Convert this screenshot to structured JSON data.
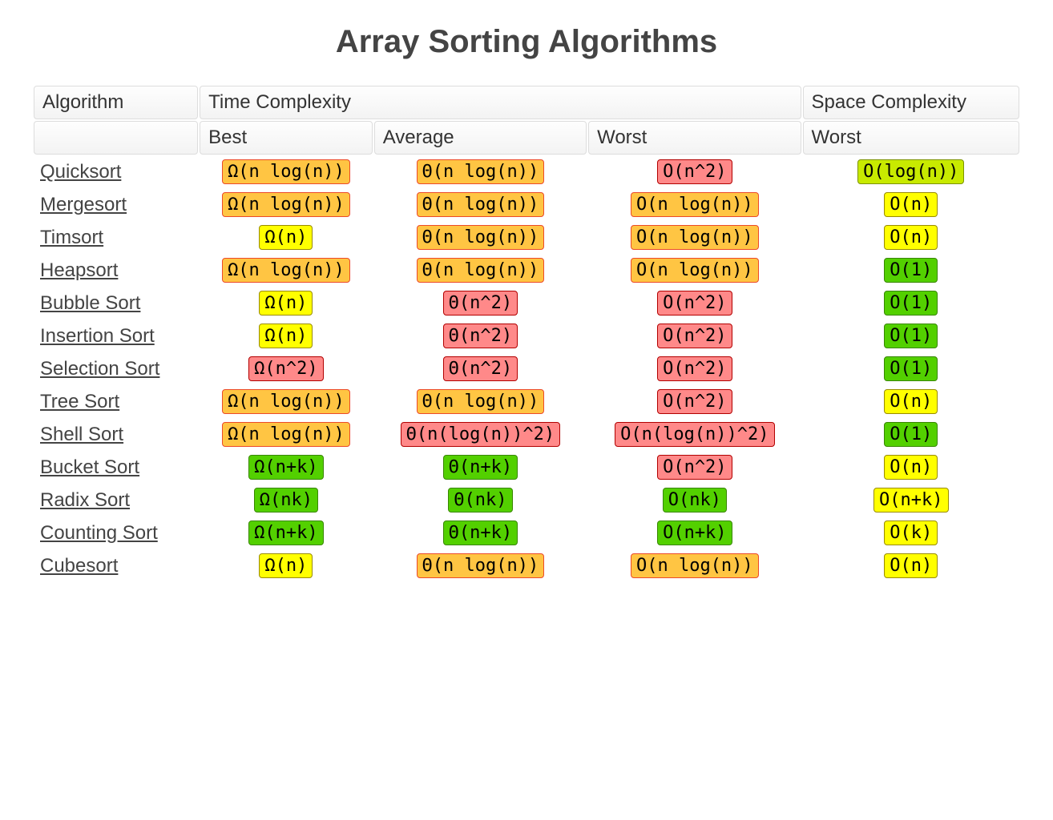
{
  "title": "Array Sorting Algorithms",
  "header": {
    "algorithm": "Algorithm",
    "time_group": "Time Complexity",
    "space_group": "Space Complexity",
    "best": "Best",
    "average": "Average",
    "worst": "Worst",
    "space_worst": "Worst"
  },
  "colors": {
    "green": {
      "bg": "#53d000",
      "border": "#388600"
    },
    "yellowgreen": {
      "bg": "#c8ea00",
      "border": "#7c9201"
    },
    "yellow": {
      "bg": "#ffff00",
      "border": "#998b00"
    },
    "orange": {
      "bg": "#ffc543",
      "border": "#ec4a29"
    },
    "red": {
      "bg": "#ff8989",
      "border": "#b20000"
    }
  },
  "rows": [
    {
      "name": "Quicksort",
      "best": {
        "text": "Ω(n log(n))",
        "color": "orange"
      },
      "avg": {
        "text": "Θ(n log(n))",
        "color": "orange"
      },
      "worst": {
        "text": "O(n^2)",
        "color": "red"
      },
      "space": {
        "text": "O(log(n))",
        "color": "yellowgreen"
      }
    },
    {
      "name": "Mergesort",
      "best": {
        "text": "Ω(n log(n))",
        "color": "orange"
      },
      "avg": {
        "text": "Θ(n log(n))",
        "color": "orange"
      },
      "worst": {
        "text": "O(n log(n))",
        "color": "orange"
      },
      "space": {
        "text": "O(n)",
        "color": "yellow"
      }
    },
    {
      "name": "Timsort",
      "best": {
        "text": "Ω(n)",
        "color": "yellow"
      },
      "avg": {
        "text": "Θ(n log(n))",
        "color": "orange"
      },
      "worst": {
        "text": "O(n log(n))",
        "color": "orange"
      },
      "space": {
        "text": "O(n)",
        "color": "yellow"
      }
    },
    {
      "name": "Heapsort",
      "best": {
        "text": "Ω(n log(n))",
        "color": "orange"
      },
      "avg": {
        "text": "Θ(n log(n))",
        "color": "orange"
      },
      "worst": {
        "text": "O(n log(n))",
        "color": "orange"
      },
      "space": {
        "text": "O(1)",
        "color": "green"
      }
    },
    {
      "name": "Bubble Sort",
      "best": {
        "text": "Ω(n)",
        "color": "yellow"
      },
      "avg": {
        "text": "Θ(n^2)",
        "color": "red"
      },
      "worst": {
        "text": "O(n^2)",
        "color": "red"
      },
      "space": {
        "text": "O(1)",
        "color": "green"
      }
    },
    {
      "name": "Insertion Sort",
      "best": {
        "text": "Ω(n)",
        "color": "yellow"
      },
      "avg": {
        "text": "Θ(n^2)",
        "color": "red"
      },
      "worst": {
        "text": "O(n^2)",
        "color": "red"
      },
      "space": {
        "text": "O(1)",
        "color": "green"
      }
    },
    {
      "name": "Selection Sort",
      "best": {
        "text": "Ω(n^2)",
        "color": "red"
      },
      "avg": {
        "text": "Θ(n^2)",
        "color": "red"
      },
      "worst": {
        "text": "O(n^2)",
        "color": "red"
      },
      "space": {
        "text": "O(1)",
        "color": "green"
      }
    },
    {
      "name": "Tree Sort",
      "best": {
        "text": "Ω(n log(n))",
        "color": "orange"
      },
      "avg": {
        "text": "Θ(n log(n))",
        "color": "orange"
      },
      "worst": {
        "text": "O(n^2)",
        "color": "red"
      },
      "space": {
        "text": "O(n)",
        "color": "yellow"
      }
    },
    {
      "name": "Shell Sort",
      "best": {
        "text": "Ω(n log(n))",
        "color": "orange"
      },
      "avg": {
        "text": "Θ(n(log(n))^2)",
        "color": "red"
      },
      "worst": {
        "text": "O(n(log(n))^2)",
        "color": "red"
      },
      "space": {
        "text": "O(1)",
        "color": "green"
      }
    },
    {
      "name": "Bucket Sort",
      "best": {
        "text": "Ω(n+k)",
        "color": "green"
      },
      "avg": {
        "text": "Θ(n+k)",
        "color": "green"
      },
      "worst": {
        "text": "O(n^2)",
        "color": "red"
      },
      "space": {
        "text": "O(n)",
        "color": "yellow"
      }
    },
    {
      "name": "Radix Sort",
      "best": {
        "text": "Ω(nk)",
        "color": "green"
      },
      "avg": {
        "text": "Θ(nk)",
        "color": "green"
      },
      "worst": {
        "text": "O(nk)",
        "color": "green"
      },
      "space": {
        "text": "O(n+k)",
        "color": "yellow"
      }
    },
    {
      "name": "Counting Sort",
      "best": {
        "text": "Ω(n+k)",
        "color": "green"
      },
      "avg": {
        "text": "Θ(n+k)",
        "color": "green"
      },
      "worst": {
        "text": "O(n+k)",
        "color": "green"
      },
      "space": {
        "text": "O(k)",
        "color": "yellow"
      }
    },
    {
      "name": "Cubesort",
      "best": {
        "text": "Ω(n)",
        "color": "yellow"
      },
      "avg": {
        "text": "Θ(n log(n))",
        "color": "orange"
      },
      "worst": {
        "text": "O(n log(n))",
        "color": "orange"
      },
      "space": {
        "text": "O(n)",
        "color": "yellow"
      }
    }
  ]
}
